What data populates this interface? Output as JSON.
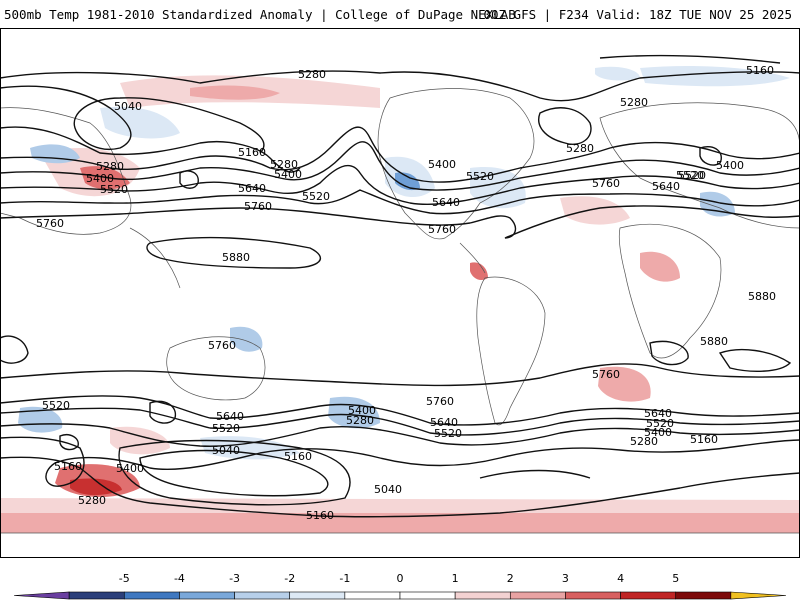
{
  "header": {
    "title_left": "500mb Temp 1981-2010 Standardized Anomaly | College of DuPage NEXLAB",
    "title_right": "00Z GFS | F234 Valid: 18Z TUE NOV 25 2025"
  },
  "colors": {
    "anom_pos_1": "#f5d6d6",
    "anom_pos_2": "#eeaaaa",
    "anom_pos_3": "#e07070",
    "anom_pos_4": "#c83030",
    "anom_neg_1": "#dce8f5",
    "anom_neg_2": "#b0cbe8",
    "anom_neg_3": "#6f9fd6"
  },
  "contours": {
    "labels": [
      {
        "id": "c5280-n-pac",
        "text": "5280"
      },
      {
        "id": "c5040-n-pac",
        "text": "5040"
      },
      {
        "id": "c5160-n-pac",
        "text": "5160"
      },
      {
        "id": "c5280-asia",
        "text": "5280"
      },
      {
        "id": "c5400-asia",
        "text": "5400"
      },
      {
        "id": "c5520-asia",
        "text": "5520"
      },
      {
        "id": "c5280-pac",
        "text": "5280"
      },
      {
        "id": "c5400-pac",
        "text": "5400"
      },
      {
        "id": "c5640-pac",
        "text": "5640"
      },
      {
        "id": "c5520-pac",
        "text": "5520"
      },
      {
        "id": "c5760-pac",
        "text": "5760"
      },
      {
        "id": "c5760-w",
        "text": "5760"
      },
      {
        "id": "c5880-pac",
        "text": "5880"
      },
      {
        "id": "c5400-na",
        "text": "5400"
      },
      {
        "id": "c5520-na",
        "text": "5520"
      },
      {
        "id": "c5640-na",
        "text": "5640"
      },
      {
        "id": "c5760-na",
        "text": "5760"
      },
      {
        "id": "c5280-na",
        "text": "5280"
      },
      {
        "id": "c5160-ne",
        "text": "5160"
      },
      {
        "id": "c5280-eu",
        "text": "5280"
      },
      {
        "id": "c5520-atl",
        "text": "5520"
      },
      {
        "id": "c5760-atl",
        "text": "5760"
      },
      {
        "id": "c5640-eu",
        "text": "5640"
      },
      {
        "id": "c5520-eu",
        "text": "5520"
      },
      {
        "id": "c5400-eu",
        "text": "5400"
      },
      {
        "id": "c5880-af",
        "text": "5880"
      },
      {
        "id": "c5880-af2",
        "text": "5880"
      },
      {
        "id": "c5760-aus",
        "text": "5760"
      },
      {
        "id": "c5760-sa",
        "text": "5760"
      },
      {
        "id": "c5760-satl",
        "text": "5760"
      },
      {
        "id": "c5520-s-w",
        "text": "5520"
      },
      {
        "id": "c5640-s-aus",
        "text": "5640"
      },
      {
        "id": "c5520-s-aus",
        "text": "5520"
      },
      {
        "id": "c5400-s-pac",
        "text": "5400"
      },
      {
        "id": "c5280-s-pac",
        "text": "5280"
      },
      {
        "id": "c5640-s-sa",
        "text": "5640"
      },
      {
        "id": "c5520-s-sa",
        "text": "5520"
      },
      {
        "id": "c5640-s-atl",
        "text": "5640"
      },
      {
        "id": "c5520-s-atl",
        "text": "5520"
      },
      {
        "id": "c5400-s-atl",
        "text": "5400"
      },
      {
        "id": "c5280-s-atl",
        "text": "5280"
      },
      {
        "id": "c5160-s-atl",
        "text": "5160"
      },
      {
        "id": "c5160-s-w",
        "text": "5160"
      },
      {
        "id": "c5400-s-w",
        "text": "5400"
      },
      {
        "id": "c5280-s-w",
        "text": "5280"
      },
      {
        "id": "c5040-s-pac",
        "text": "5040"
      },
      {
        "id": "c5160-s-pac",
        "text": "5160"
      },
      {
        "id": "c5040-s-pac2",
        "text": "5040"
      },
      {
        "id": "c5160-s-pac2",
        "text": "5160"
      }
    ]
  },
  "colorbar": {
    "ticks": [
      "-5",
      "-4",
      "-3",
      "-2",
      "-1",
      "0",
      "1",
      "2",
      "3",
      "4",
      "5"
    ],
    "colors": [
      "#6a3fa0",
      "#2b3f7a",
      "#3f78c0",
      "#7aa8da",
      "#b7cfe9",
      "#dde9f5",
      "#ffffff",
      "#ffffff",
      "#f3d2d2",
      "#e8a3a3",
      "#d86060",
      "#c02525",
      "#7d0a0a",
      "#f0c020"
    ]
  }
}
